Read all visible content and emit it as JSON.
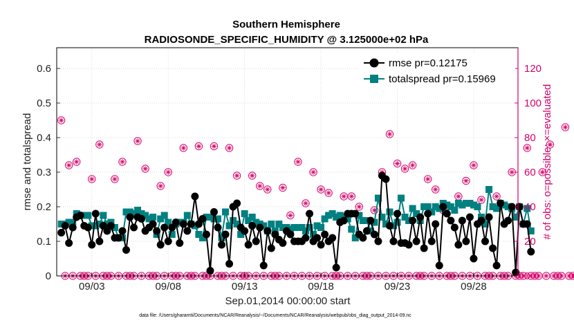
{
  "chart_data": {
    "type": "line",
    "title": "Southern Hemisphere",
    "subtitle": "RADIOSONDE_SPECIFIC_HUMIDITY @ 3.125000e+02 hPa",
    "xlabel": "Sep.01,2014 00:00:00 start",
    "ylabel": "rmse and totalspread",
    "y2label": "# of obs: o=possible; ×=evaluated",
    "footer": "data file: /Users/gharamti/Documents/NCAR/Reanalysis/~/Documents/NCAR/Reanalysis/webpub/obs_diag_output_2014-09.nc",
    "xlim": [
      0.7,
      30.9
    ],
    "ylim": [
      0,
      0.66
    ],
    "y2lim": [
      0,
      132
    ],
    "x_ticks": [
      3,
      8,
      13,
      18,
      23,
      28
    ],
    "x_tick_labels": [
      "09/03",
      "09/08",
      "09/13",
      "09/18",
      "09/23",
      "09/28"
    ],
    "y_ticks": [
      "0",
      "0.1",
      "0.2",
      "0.3",
      "0.4",
      "0.5",
      "0.6"
    ],
    "y2_ticks": [
      "0",
      "20",
      "40",
      "60",
      "80",
      "100",
      "120"
    ],
    "colors": {
      "rmse": "#000000",
      "spread": "#008080",
      "obs": "#d4006a"
    },
    "series": [
      {
        "name": "rmse pr=0.12175",
        "x_start": 1.0,
        "x_step": 0.25,
        "values": [
          0.125,
          0.145,
          0.095,
          0.14,
          0.17,
          0.175,
          0.145,
          0.14,
          0.09,
          0.18,
          0.1,
          0.145,
          0.13,
          0.145,
          0.11,
          0.11,
          0.13,
          0.075,
          0.17,
          0.14,
          0.17,
          0.165,
          0.13,
          0.14,
          0.15,
          0.13,
          0.09,
          0.14,
          0.1,
          0.14,
          0.155,
          0.095,
          0.15,
          0.13,
          0.15,
          0.23,
          0.15,
          0.165,
          0.12,
          0.015,
          0.185,
          0.14,
          0.09,
          0.12,
          0.035,
          0.2,
          0.21,
          0.14,
          0.13,
          0.09,
          0.145,
          0.1,
          0.14,
          0.03,
          0.13,
          0.08,
          0.12,
          0.105,
          0.095,
          0.13,
          0.12,
          0.1,
          0.1,
          0.1,
          0.11,
          0.18,
          0.1,
          0.11,
          0.09,
          0.12,
          0.1,
          0.11,
          0.024,
          0.155,
          0.16,
          0.18,
          0.18,
          0.18,
          0.12,
          0.11,
          0.13,
          0.16,
          0.12,
          0.1,
          0.29,
          0.28,
          0.145,
          0.1,
          0.18,
          0.095,
          0.095,
          0.09,
          0.16,
          0.1,
          0.17,
          0.08,
          0.18,
          0.1,
          0.15,
          0.03,
          0.2,
          0.18,
          0.16,
          0.14,
          0.09,
          0.16,
          0.1,
          0.17,
          0.05,
          0.15,
          0.16,
          0.1,
          0.17,
          0.08,
          0.03,
          0.21,
          0.15,
          0.16,
          0.2,
          0.01,
          0.2,
          0.15,
          0.15,
          0.07
        ]
      },
      {
        "name": "totalspread pr=0.15969",
        "x_start": 1.0,
        "x_step": 0.25,
        "values": [
          0.15,
          0.15,
          0.155,
          0.155,
          0.18,
          0.175,
          0.175,
          0.175,
          0.145,
          0.145,
          0.15,
          0.175,
          0.15,
          0.155,
          0.14,
          0.11,
          0.11,
          0.185,
          0.185,
          0.18,
          0.19,
          0.18,
          0.175,
          0.165,
          0.17,
          0.12,
          0.165,
          0.175,
          0.155,
          0.12,
          0.15,
          0.155,
          0.155,
          0.175,
          0.15,
          0.145,
          0.12,
          0.11,
          0.17,
          0.17,
          0.165,
          0.165,
          0.11,
          0.185,
          0.145,
          0.16,
          0.15,
          0.12,
          0.18,
          0.16,
          0.17,
          0.155,
          0.15,
          0.145,
          0.13,
          0.15,
          0.13,
          0.15,
          0.14,
          0.14,
          0.135,
          0.14,
          0.14,
          0.14,
          0.13,
          0.14,
          0.12,
          0.145,
          0.14,
          0.165,
          0.175,
          0.18,
          0.17,
          0.175,
          0.17,
          0.165,
          0.135,
          0.11,
          0.175,
          0.16,
          0.16,
          0.13,
          0.155,
          0.225,
          0.17,
          0.15,
          0.185,
          0.145,
          0.155,
          0.225,
          0.17,
          0.16,
          0.195,
          0.18,
          0.16,
          0.2,
          0.2,
          0.185,
          0.2,
          0.195,
          0.21,
          0.205,
          0.2,
          0.19,
          0.21,
          0.205,
          0.21,
          0.21,
          0.205,
          0.2,
          0.17,
          0.15,
          0.25,
          0.2,
          0.195,
          0.21,
          0.205,
          0.2,
          0.195,
          0.17,
          0.2,
          0.15,
          0.195,
          0.13
        ]
      },
      {
        "name": "obs_possible",
        "x_start": 1.0,
        "x_step": 0.25,
        "values": [
          90,
          0,
          64,
          0,
          66,
          0,
          0,
          0,
          56,
          0,
          76,
          0,
          0,
          0,
          56,
          0,
          66,
          0,
          0,
          0,
          78,
          0,
          62,
          0,
          0,
          0,
          52,
          0,
          60,
          0,
          0,
          0,
          74,
          0,
          0,
          0,
          75,
          0,
          0,
          0,
          75,
          0,
          0,
          0,
          74,
          0,
          58,
          0,
          0,
          0,
          58,
          0,
          52,
          0,
          50,
          0,
          0,
          0,
          51,
          0,
          35,
          0,
          66,
          0,
          42,
          0,
          60,
          0,
          50,
          0,
          48,
          0,
          0,
          0,
          46,
          0,
          46,
          0,
          40,
          0,
          0,
          0,
          38,
          0,
          60,
          0,
          82,
          0,
          65,
          0,
          62,
          0,
          64,
          0,
          0,
          0,
          56,
          0,
          50,
          0,
          38,
          0,
          0,
          0,
          46,
          0,
          55,
          0,
          64,
          0,
          44,
          0,
          0,
          0,
          46,
          0,
          0,
          0,
          60,
          0,
          0,
          0,
          74,
          0,
          0,
          0,
          60,
          0,
          76,
          0,
          0,
          0,
          86,
          0,
          0,
          0,
          88,
          0,
          0,
          0,
          67,
          0,
          0,
          0,
          52,
          0,
          0,
          0,
          0,
          0,
          72,
          0
        ],
        "count_axis": "right"
      },
      {
        "name": "obs_evaluated",
        "x_start": 1.0,
        "x_step": 0.25,
        "values": [
          90,
          0,
          64,
          0,
          66,
          0,
          0,
          0,
          56,
          0,
          76,
          0,
          0,
          0,
          56,
          0,
          66,
          0,
          0,
          0,
          78,
          0,
          62,
          0,
          0,
          0,
          52,
          0,
          60,
          0,
          0,
          0,
          74,
          0,
          0,
          0,
          75,
          0,
          0,
          0,
          75,
          0,
          0,
          0,
          74,
          0,
          58,
          0,
          0,
          0,
          58,
          0,
          52,
          0,
          50,
          0,
          0,
          0,
          51,
          0,
          35,
          0,
          66,
          0,
          42,
          0,
          60,
          0,
          50,
          0,
          48,
          0,
          0,
          0,
          46,
          0,
          46,
          0,
          40,
          0,
          0,
          0,
          38,
          0,
          60,
          0,
          82,
          0,
          65,
          0,
          62,
          0,
          64,
          0,
          0,
          0,
          56,
          0,
          50,
          0,
          38,
          0,
          0,
          0,
          46,
          0,
          55,
          0,
          64,
          0,
          44,
          0,
          0,
          0,
          46,
          0,
          0,
          0,
          60,
          0,
          0,
          0,
          74,
          0,
          0,
          0,
          60,
          0,
          76,
          0,
          0,
          0,
          86,
          0,
          0,
          0,
          88,
          0,
          0,
          0,
          67,
          0,
          0,
          0,
          52,
          0,
          0,
          0,
          0,
          0,
          72,
          0
        ],
        "count_axis": "right"
      }
    ]
  }
}
